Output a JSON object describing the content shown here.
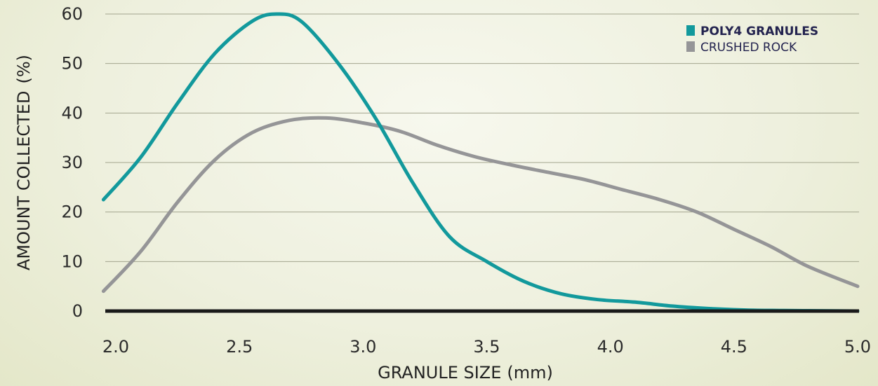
{
  "chart_data": {
    "type": "line",
    "title": "",
    "xlabel": {
      "main": "GRANULE SIZE",
      "unit": "(mm)"
    },
    "ylabel": {
      "main": "AMOUNT COLLECTED",
      "unit": "(%)"
    },
    "xlim": [
      1.95,
      5.0
    ],
    "ylim": [
      0,
      60
    ],
    "x_ticks": [
      "2.0",
      "2.5",
      "3.0",
      "3.5",
      "4.0",
      "4.5",
      "5.0"
    ],
    "y_ticks": [
      "0",
      "10",
      "20",
      "30",
      "40",
      "50",
      "60"
    ],
    "grid": "horizontal",
    "legend_position": "top-right",
    "series": [
      {
        "name": "POLY4 GRANULES",
        "color": "#12999c",
        "x": [
          1.95,
          2.1,
          2.25,
          2.4,
          2.55,
          2.65,
          2.75,
          2.9,
          3.05,
          3.2,
          3.35,
          3.5,
          3.65,
          3.8,
          3.95,
          4.1,
          4.25,
          4.4,
          4.55,
          4.7,
          4.85,
          5.0
        ],
        "y": [
          22.5,
          31,
          42,
          52,
          58.5,
          60,
          58.5,
          50,
          39,
          26,
          15,
          10,
          6,
          3.5,
          2.3,
          1.8,
          1.0,
          0.5,
          0.2,
          0.1,
          0.05,
          0.0
        ]
      },
      {
        "name": "CRUSHED ROCK",
        "color": "#959597",
        "x": [
          1.95,
          2.1,
          2.25,
          2.4,
          2.55,
          2.7,
          2.85,
          3.0,
          3.15,
          3.3,
          3.45,
          3.6,
          3.75,
          3.9,
          4.05,
          4.2,
          4.35,
          4.5,
          4.65,
          4.8,
          5.0
        ],
        "y": [
          4,
          12,
          22,
          30.5,
          36,
          38.5,
          39,
          38,
          36.3,
          33.5,
          31.2,
          29.5,
          28,
          26.5,
          24.5,
          22.5,
          20,
          16.5,
          13,
          9,
          5
        ]
      }
    ]
  }
}
